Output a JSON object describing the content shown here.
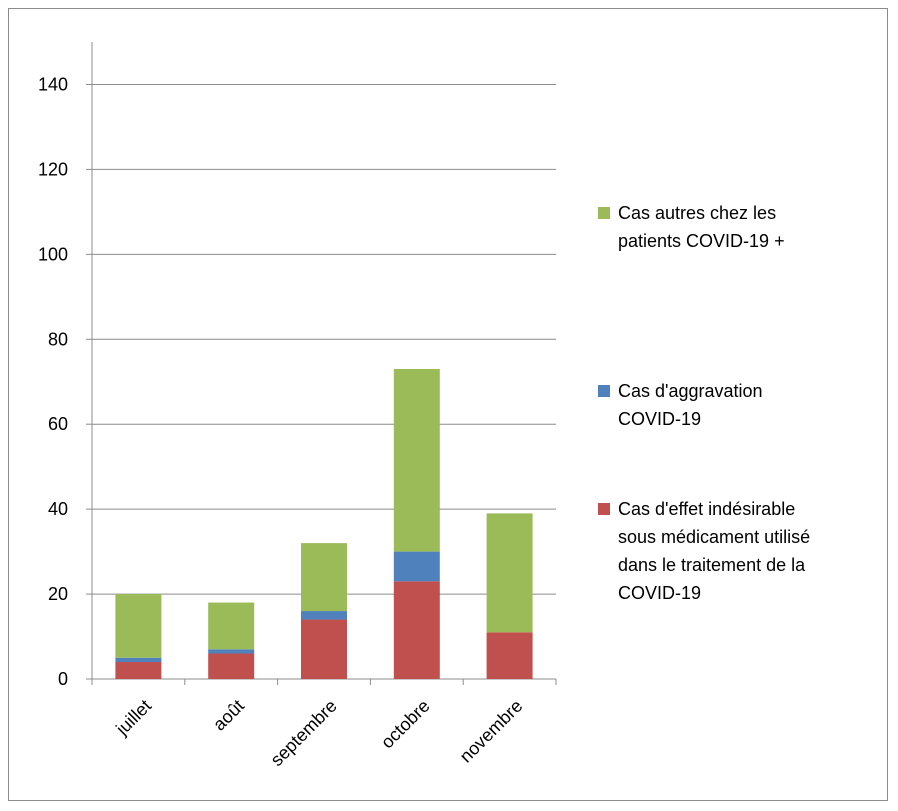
{
  "chart_data": {
    "type": "bar",
    "stacked": true,
    "categories": [
      "juillet",
      "août",
      "septembre",
      "octobre",
      "novembre"
    ],
    "series": [
      {
        "name": "Cas d'effet indésirable sous médicament utilisé dans le traitement de la COVID-19",
        "legend_lines": [
          "Cas d'effet indésirable",
          "sous médicament utilisé",
          "dans le traitement de la",
          "COVID-19"
        ],
        "color": "#c0504d",
        "values": [
          4,
          6,
          14,
          23,
          11
        ]
      },
      {
        "name": "Cas d'aggravation COVID-19",
        "legend_lines": [
          "Cas d'aggravation",
          "COVID-19"
        ],
        "color": "#4f81bd",
        "values": [
          1,
          1,
          2,
          7,
          0
        ]
      },
      {
        "name": "Cas autres chez les patients COVID-19 +",
        "legend_lines": [
          "Cas autres chez les",
          "patients COVID-19 +"
        ],
        "color": "#9bbb59",
        "values": [
          15,
          11,
          16,
          43,
          28
        ]
      }
    ],
    "yticks": [
      0,
      20,
      40,
      60,
      80,
      100,
      120,
      140
    ],
    "ylim": [
      0,
      150
    ],
    "grid": true,
    "legend_position": "right",
    "title": "",
    "xlabel": "",
    "ylabel": ""
  }
}
